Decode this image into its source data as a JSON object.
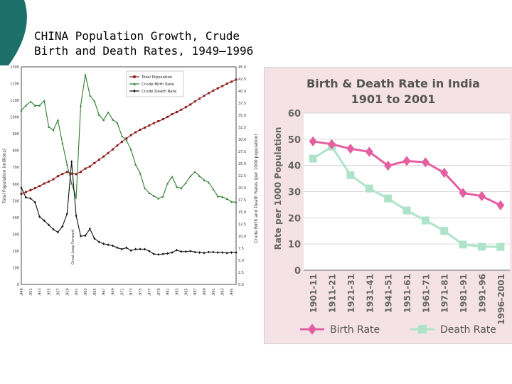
{
  "slide": {
    "title": "CHINA Population Growth, Crude\nBirth and Death Rates, 1949–1996",
    "accent_color": "#1d6f6a"
  },
  "chart_data": [
    {
      "type": "line",
      "title": "",
      "x": [
        1949,
        1950,
        1951,
        1952,
        1953,
        1954,
        1955,
        1956,
        1957,
        1958,
        1959,
        1960,
        1961,
        1962,
        1963,
        1964,
        1965,
        1966,
        1967,
        1968,
        1969,
        1970,
        1971,
        1972,
        1973,
        1974,
        1975,
        1976,
        1977,
        1978,
        1979,
        1980,
        1981,
        1982,
        1983,
        1984,
        1985,
        1986,
        1987,
        1988,
        1989,
        1990,
        1991,
        1992,
        1993,
        1994,
        1995,
        1996
      ],
      "x_tick_labels": [
        "1949",
        "1951",
        "1953",
        "1955",
        "1957",
        "1959",
        "1961",
        "1963",
        "1965",
        "1967",
        "1969",
        "1971",
        "1973",
        "1975",
        "1977",
        "1979",
        "1981",
        "1983",
        "1985",
        "1987",
        "1989",
        "1991",
        "1993",
        "1995"
      ],
      "ylabel_left": "Total Population (millions)",
      "ylabel_right": "Crude Birth and Death Rates (per 1000 population)",
      "ylim_left": [
        0,
        1300
      ],
      "ylim_right": [
        0,
        45
      ],
      "y_ticks_left": [
        "0",
        "100",
        "200",
        "300",
        "400",
        "500",
        "600",
        "700",
        "800",
        "900",
        "1000",
        "1100",
        "1200",
        "1300"
      ],
      "y_ticks_right": [
        "0.0",
        "2.5",
        "5.0",
        "7.5",
        "10.0",
        "12.5",
        "15.0",
        "17.5",
        "20.0",
        "22.5",
        "25.0",
        "27.5",
        "30.0",
        "32.5",
        "35.0",
        "37.5",
        "40.0",
        "42.5",
        "45.0"
      ],
      "legend_position": "top-center",
      "annotation": "Great Leap Forward",
      "series": [
        {
          "name": "Total Population",
          "axis": "left",
          "color": "#8b1a1a",
          "marker": "square",
          "values": [
            542,
            552,
            563,
            575,
            588,
            603,
            615,
            628,
            647,
            660,
            672,
            662,
            659,
            673,
            692,
            705,
            725,
            745,
            764,
            785,
            807,
            830,
            852,
            872,
            892,
            909,
            924,
            937,
            950,
            963,
            975,
            987,
            1001,
            1017,
            1030,
            1044,
            1059,
            1075,
            1093,
            1110,
            1127,
            1143,
            1158,
            1172,
            1185,
            1199,
            1211,
            1224
          ]
        },
        {
          "name": "Crude Birth Rate",
          "axis": "right",
          "color": "#2e7d32",
          "marker": "triangle",
          "values": [
            36.0,
            37.0,
            37.8,
            37.0,
            37.0,
            38.0,
            32.6,
            31.9,
            34.0,
            29.2,
            24.8,
            20.9,
            18.0,
            37.0,
            43.4,
            39.1,
            37.9,
            35.1,
            34.0,
            35.6,
            34.1,
            33.4,
            30.7,
            29.8,
            27.9,
            24.8,
            23.0,
            19.9,
            18.9,
            18.3,
            17.8,
            18.2,
            20.9,
            22.3,
            20.2,
            19.9,
            21.0,
            22.4,
            23.3,
            22.4,
            21.6,
            21.1,
            19.7,
            18.2,
            18.1,
            17.7,
            17.1,
            17.0
          ]
        },
        {
          "name": "Crude Death Rate",
          "axis": "right",
          "color": "#111111",
          "marker": "diamond",
          "values": [
            20.0,
            18.0,
            17.8,
            17.0,
            14.0,
            13.2,
            12.3,
            11.4,
            10.8,
            12.0,
            14.6,
            25.4,
            14.2,
            10.0,
            10.1,
            11.5,
            9.5,
            8.8,
            8.4,
            8.2,
            8.0,
            7.6,
            7.3,
            7.6,
            7.0,
            7.3,
            7.3,
            7.3,
            6.9,
            6.3,
            6.2,
            6.3,
            6.4,
            6.6,
            7.1,
            6.8,
            6.8,
            6.9,
            6.7,
            6.6,
            6.5,
            6.7,
            6.7,
            6.6,
            6.6,
            6.5,
            6.6,
            6.6
          ]
        }
      ]
    },
    {
      "type": "line",
      "title": "Birth & Death Rate in India 1901 to 2001",
      "categories": [
        "1901-11",
        "1911-21",
        "1921-31",
        "1931-41",
        "1941-51",
        "1951-61",
        "1961-71",
        "1971-81",
        "1981-91",
        "1991-96",
        "1996-2001"
      ],
      "ylabel": "Rate per 1000 Population",
      "ylim": [
        0,
        60
      ],
      "y_ticks": [
        "0",
        "10",
        "20",
        "30",
        "40",
        "50",
        "60"
      ],
      "legend_position": "bottom",
      "series": [
        {
          "name": "Birth Rate",
          "color": "#e45fa0",
          "marker": "diamond",
          "values": [
            49.2,
            48.1,
            46.4,
            45.2,
            39.9,
            41.7,
            41.2,
            37.2,
            29.5,
            28.3,
            24.8
          ]
        },
        {
          "name": "Death Rate",
          "color": "#aee3c9",
          "marker": "square",
          "values": [
            42.6,
            47.2,
            36.3,
            31.2,
            27.4,
            22.8,
            19.0,
            15.0,
            9.8,
            9.0,
            8.9
          ]
        }
      ]
    }
  ]
}
